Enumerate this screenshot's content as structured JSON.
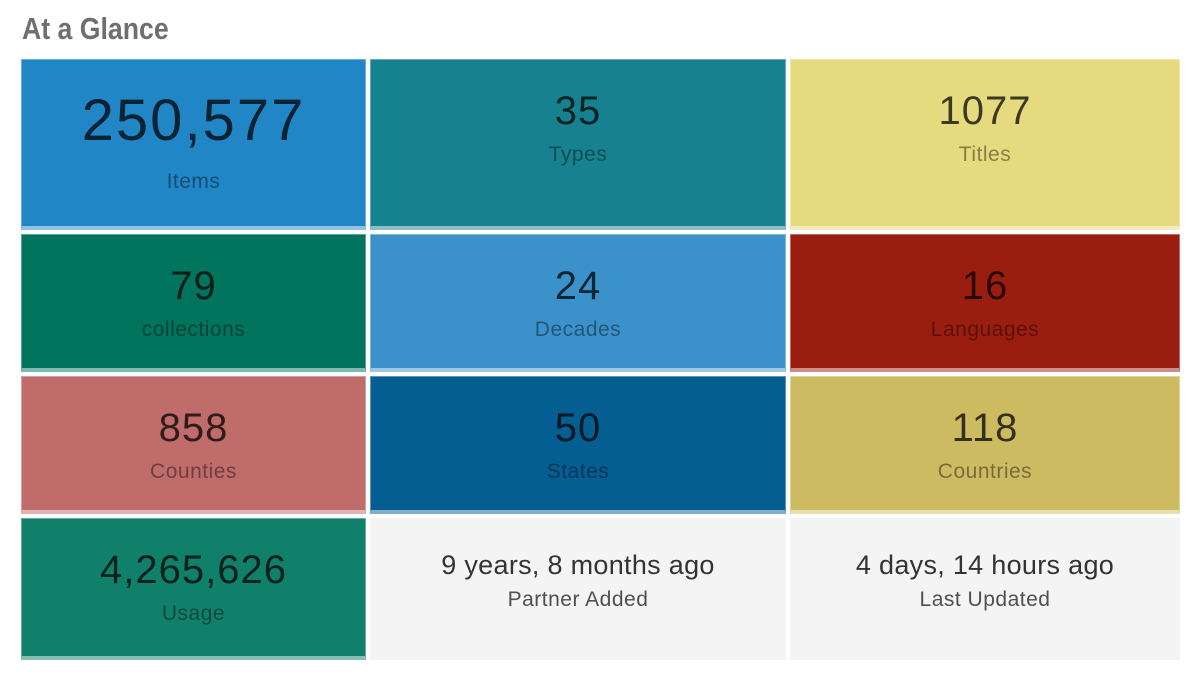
{
  "header": {
    "title": "At a Glance",
    "title_color": "#6f6f6f"
  },
  "colors": {
    "page_bg": "#ffffff",
    "time_tile_bg": "#f4f4f4"
  },
  "tiles": [
    {
      "value": "250,577",
      "label": "Items",
      "bg": "#2186c6",
      "variant": "large"
    },
    {
      "value": "35",
      "label": "Types",
      "bg": "#17828f",
      "variant": ""
    },
    {
      "value": "1077",
      "label": "Titles",
      "bg": "#e5da7d",
      "variant": ""
    },
    {
      "value": "79",
      "label": "collections",
      "bg": "#00745c",
      "variant": ""
    },
    {
      "value": "24",
      "label": "Decades",
      "bg": "#3b92cb",
      "variant": ""
    },
    {
      "value": "16",
      "label": "Languages",
      "bg": "#9a1e10",
      "variant": ""
    },
    {
      "value": "858",
      "label": "Counties",
      "bg": "#bf6c6b",
      "variant": ""
    },
    {
      "value": "50",
      "label": "States",
      "bg": "#045e92",
      "variant": ""
    },
    {
      "value": "118",
      "label": "Countries",
      "bg": "#cdbb62",
      "variant": ""
    },
    {
      "value": "4,265,626",
      "label": "Usage",
      "bg": "#11806a",
      "variant": ""
    },
    {
      "value": "9 years, 8 months ago",
      "label": "Partner Added",
      "bg": "#f4f4f4",
      "variant": "time"
    },
    {
      "value": "4 days, 14 hours ago",
      "label": "Last Updated",
      "bg": "#f4f4f4",
      "variant": "time"
    }
  ]
}
